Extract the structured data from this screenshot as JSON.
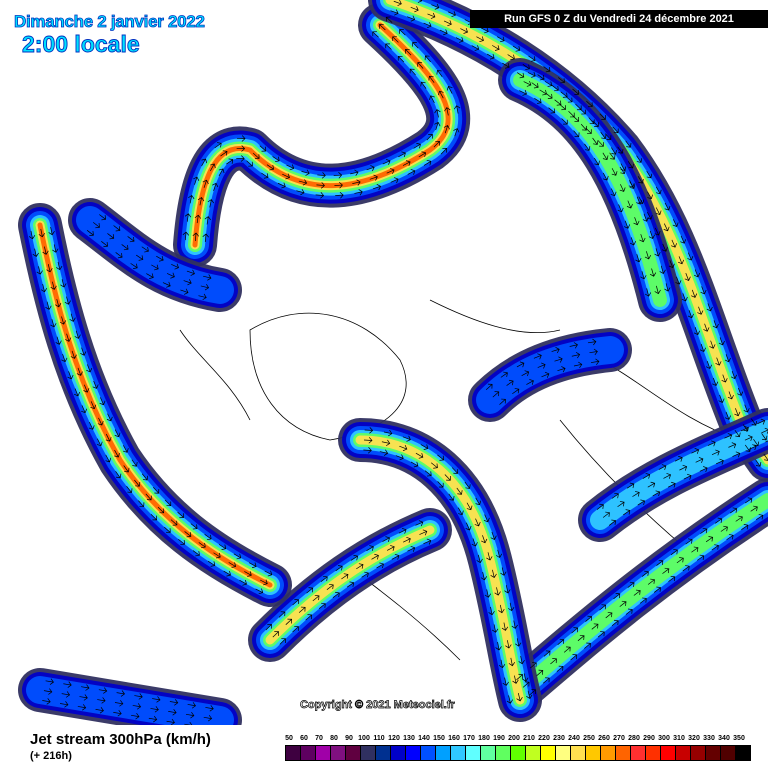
{
  "header": {
    "date": "Dimanche 2 janvier 2022",
    "hour": "2:00 locale",
    "run": "Run GFS 0 Z du Vendredi 24 décembre 2021"
  },
  "footer": {
    "title": "Jet stream 300hPa (km/h)",
    "lead": "(+ 216h)",
    "copyright": "Copyright © 2021 Meteociel.fr"
  },
  "legend": {
    "labels": [
      "50",
      "60",
      "70",
      "80",
      "90",
      "100",
      "110",
      "120",
      "130",
      "140",
      "150",
      "160",
      "170",
      "180",
      "190",
      "200",
      "210",
      "220",
      "230",
      "240",
      "250",
      "260",
      "270",
      "280",
      "290",
      "300",
      "310",
      "320",
      "330",
      "340",
      "350"
    ],
    "colors": [
      "#3e0040",
      "#5e0060",
      "#a000a8",
      "#801080",
      "#600040",
      "#303060",
      "#003090",
      "#0000c8",
      "#0000ff",
      "#0050ff",
      "#00a0ff",
      "#30c8ff",
      "#60ffff",
      "#60ffa0",
      "#60ff60",
      "#60ff00",
      "#c0ff20",
      "#ffff00",
      "#ffff80",
      "#ffe050",
      "#ffc800",
      "#ff9a00",
      "#ff6400",
      "#ff3030",
      "#ff3000",
      "#ff0000",
      "#c80000",
      "#960000",
      "#640000",
      "#500000",
      "#000000"
    ]
  }
}
